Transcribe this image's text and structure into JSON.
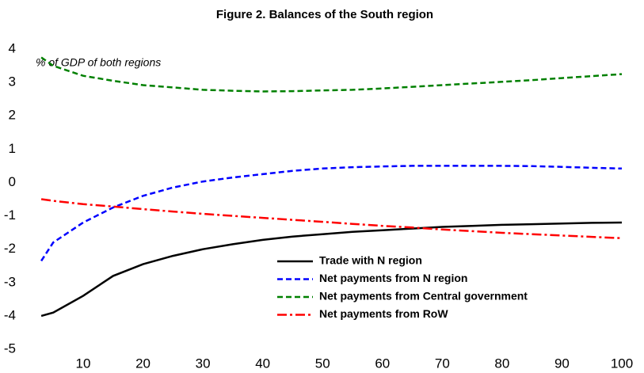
{
  "chart_data": {
    "type": "line",
    "title": "Figure 2. Balances of the South region",
    "annotation": "% of GDP of both regions",
    "x": [
      3,
      5,
      10,
      15,
      20,
      25,
      30,
      35,
      40,
      45,
      50,
      55,
      60,
      65,
      70,
      75,
      80,
      85,
      90,
      95,
      100
    ],
    "series": [
      {
        "name": "Trade with N region",
        "color": "#000000",
        "dash": "solid",
        "values": [
          -4.0,
          -3.9,
          -3.4,
          -2.8,
          -2.45,
          -2.2,
          -2.0,
          -1.85,
          -1.72,
          -1.62,
          -1.55,
          -1.48,
          -1.43,
          -1.38,
          -1.33,
          -1.3,
          -1.27,
          -1.25,
          -1.23,
          -1.21,
          -1.2
        ]
      },
      {
        "name": "Net payments from N region",
        "color": "#0000ff",
        "dash": "dashed",
        "values": [
          -2.35,
          -1.8,
          -1.2,
          -0.75,
          -0.4,
          -0.15,
          0.03,
          0.15,
          0.25,
          0.35,
          0.42,
          0.46,
          0.48,
          0.5,
          0.5,
          0.5,
          0.5,
          0.49,
          0.47,
          0.44,
          0.42
        ]
      },
      {
        "name": "Net payments from Central government",
        "color": "#008000",
        "dash": "dashed",
        "values": [
          3.75,
          3.5,
          3.2,
          3.05,
          2.92,
          2.85,
          2.78,
          2.75,
          2.73,
          2.74,
          2.76,
          2.78,
          2.82,
          2.87,
          2.92,
          2.97,
          3.02,
          3.07,
          3.13,
          3.19,
          3.25
        ]
      },
      {
        "name": "Net payments from RoW",
        "color": "#ff0000",
        "dash": "dashdot",
        "values": [
          -0.5,
          -0.55,
          -0.65,
          -0.72,
          -0.8,
          -0.87,
          -0.94,
          -1.0,
          -1.06,
          -1.12,
          -1.18,
          -1.24,
          -1.3,
          -1.35,
          -1.41,
          -1.46,
          -1.51,
          -1.55,
          -1.59,
          -1.63,
          -1.67
        ]
      }
    ],
    "xlim": [
      1,
      100
    ],
    "xticks": [
      10,
      20,
      30,
      40,
      50,
      60,
      70,
      80,
      90,
      100
    ],
    "ylim": [
      -5,
      4
    ],
    "yticks": [
      -5,
      -4,
      -3,
      -2,
      -1,
      0,
      1,
      2,
      3,
      4
    ],
    "grid": false,
    "legend": "lower right"
  }
}
